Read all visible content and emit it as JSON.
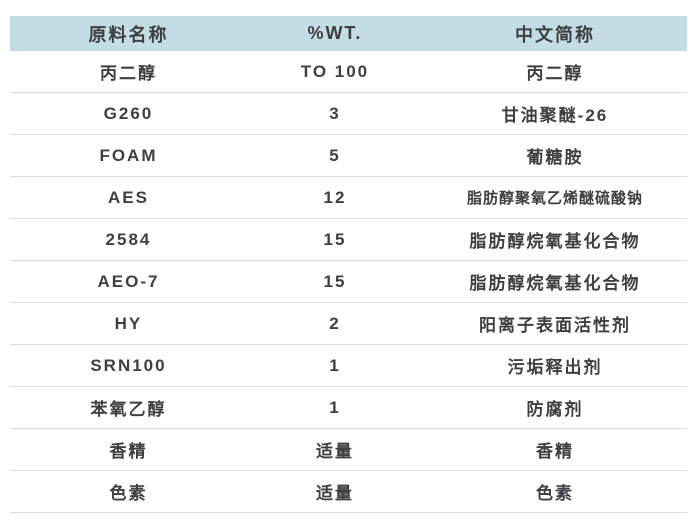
{
  "chart_data": {
    "type": "table",
    "title": "",
    "columns": [
      "原料名称",
      "%WT.",
      "中文简称"
    ],
    "rows": [
      [
        "丙二醇",
        "TO 100",
        "丙二醇"
      ],
      [
        "G260",
        "3",
        "甘油聚醚-26"
      ],
      [
        "FOAM",
        "5",
        "葡糖胺"
      ],
      [
        "AES",
        "12",
        "脂肪醇聚氧乙烯醚硫酸钠"
      ],
      [
        "2584",
        "15",
        "脂肪醇烷氧基化合物"
      ],
      [
        "AEO-7",
        "15",
        "脂肪醇烷氧基化合物"
      ],
      [
        "HY",
        "2",
        "阳离子表面活性剂"
      ],
      [
        "SRN100",
        "1",
        "污垢释出剂"
      ],
      [
        "苯氧乙醇",
        "1",
        "防腐剂"
      ],
      [
        "香精",
        "适量",
        "香精"
      ],
      [
        "色素",
        "适量",
        "色素"
      ]
    ]
  },
  "colors": {
    "header_bg": "#c4dce3",
    "text": "#3d4043",
    "divider": "#dcdcdc"
  }
}
